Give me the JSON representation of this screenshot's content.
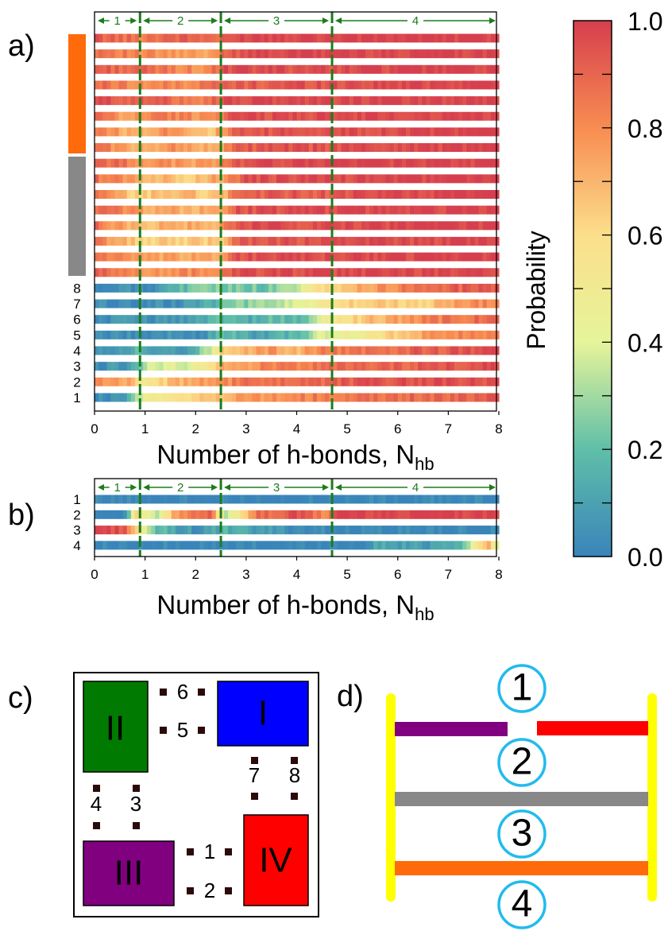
{
  "panel_labels": {
    "a": "a)",
    "b": "b)",
    "c": "c)",
    "d": "d)"
  },
  "colors": {
    "blue": "#3a84ba",
    "teal": "#5fbfa8",
    "lime": "#e6f49a",
    "yellow": "#fcdf8b",
    "orange": "#f88c51",
    "red": "#d63f4e",
    "sidebar_orange": "#ff6a0a",
    "sidebar_gray": "#888888",
    "guide_green": "#1a7d1a",
    "box_I": "#0000ff",
    "box_II": "#007a00",
    "box_III": "#800080",
    "box_IV": "#ff0000",
    "ladder_yellow": "#ffff00",
    "ladder_purple": "#800080",
    "ladder_red": "#ff0000",
    "ladder_gray": "#888888",
    "ladder_orange": "#ff6a0a",
    "circle_cyan": "#22bbee"
  },
  "chart_data": [
    {
      "id": "a",
      "type": "heatmap",
      "xlabel": "Number of h-bonds, N",
      "xlabel_sub": "hb",
      "xlim": [
        0,
        8
      ],
      "xticks": [
        "0",
        "1",
        "2",
        "3",
        "4",
        "5",
        "6",
        "7",
        "8"
      ],
      "row_labels": [
        "1",
        "2",
        "3",
        "4",
        "5",
        "6",
        "7",
        "8"
      ],
      "region_dividers": [
        0.9,
        2.5,
        4.7
      ],
      "regions": [
        "1",
        "2",
        "3",
        "4"
      ],
      "rows_top_to_bottom": [
        {
          "group": "orange",
          "profile": [
            [
              0,
              0.93
            ],
            [
              0.9,
              0.85
            ],
            [
              1.5,
              0.92
            ],
            [
              2.5,
              0.88
            ],
            [
              3,
              1.0
            ],
            [
              8,
              1.0
            ]
          ]
        },
        {
          "group": "orange",
          "profile": [
            [
              0,
              0.9
            ],
            [
              0.9,
              0.8
            ],
            [
              2.3,
              0.72
            ],
            [
              2.5,
              0.9
            ],
            [
              3,
              0.98
            ],
            [
              8,
              1.0
            ]
          ]
        },
        {
          "group": "orange",
          "profile": [
            [
              0,
              0.92
            ],
            [
              1,
              0.88
            ],
            [
              2.2,
              0.78
            ],
            [
              2.6,
              0.95
            ],
            [
              8,
              1.0
            ]
          ]
        },
        {
          "group": "orange",
          "profile": [
            [
              0,
              0.88
            ],
            [
              1,
              0.8
            ],
            [
              2,
              0.82
            ],
            [
              2.5,
              0.9
            ],
            [
              4,
              0.95
            ],
            [
              8,
              1.0
            ]
          ]
        },
        {
          "group": "orange",
          "profile": [
            [
              0,
              0.95
            ],
            [
              1,
              0.92
            ],
            [
              2.2,
              0.85
            ],
            [
              2.6,
              0.97
            ],
            [
              8,
              1.0
            ]
          ]
        },
        {
          "group": "orange",
          "profile": [
            [
              0,
              0.9
            ],
            [
              0.6,
              0.72
            ],
            [
              1.2,
              0.85
            ],
            [
              2.3,
              0.78
            ],
            [
              2.7,
              0.95
            ],
            [
              8,
              1.0
            ]
          ]
        },
        {
          "group": "orange",
          "profile": [
            [
              0,
              0.88
            ],
            [
              0.7,
              0.7
            ],
            [
              1.5,
              0.82
            ],
            [
              2.3,
              0.66
            ],
            [
              2.8,
              0.9
            ],
            [
              4,
              0.96
            ],
            [
              8,
              1.0
            ]
          ]
        },
        {
          "group": "orange",
          "profile": [
            [
              0,
              0.9
            ],
            [
              0.8,
              0.68
            ],
            [
              1.5,
              0.8
            ],
            [
              2.4,
              0.7
            ],
            [
              2.9,
              0.92
            ],
            [
              8,
              1.0
            ]
          ]
        },
        {
          "group": "gray",
          "profile": [
            [
              0,
              0.92
            ],
            [
              1,
              0.8
            ],
            [
              2,
              0.75
            ],
            [
              2.5,
              0.8
            ],
            [
              3,
              0.98
            ],
            [
              8,
              1.0
            ]
          ]
        },
        {
          "group": "gray",
          "profile": [
            [
              0,
              0.88
            ],
            [
              1,
              0.72
            ],
            [
              1.8,
              0.66
            ],
            [
              2.5,
              0.74
            ],
            [
              3,
              0.95
            ],
            [
              8,
              1.0
            ]
          ]
        },
        {
          "group": "gray",
          "profile": [
            [
              0,
              0.85
            ],
            [
              0.8,
              0.62
            ],
            [
              1.5,
              0.7
            ],
            [
              2.5,
              0.65
            ],
            [
              2.8,
              0.9
            ],
            [
              8,
              1.0
            ]
          ]
        },
        {
          "group": "gray",
          "profile": [
            [
              0,
              0.9
            ],
            [
              1,
              0.75
            ],
            [
              2.5,
              0.7
            ],
            [
              2.8,
              0.95
            ],
            [
              8,
              1.0
            ]
          ]
        },
        {
          "group": "gray",
          "profile": [
            [
              0,
              0.88
            ],
            [
              0.9,
              0.66
            ],
            [
              1.6,
              0.74
            ],
            [
              2.4,
              0.68
            ],
            [
              2.8,
              0.95
            ],
            [
              8,
              1.0
            ]
          ]
        },
        {
          "group": "gray",
          "profile": [
            [
              0,
              0.85
            ],
            [
              0.9,
              0.62
            ],
            [
              2.5,
              0.66
            ],
            [
              2.8,
              0.92
            ],
            [
              8,
              1.0
            ]
          ]
        },
        {
          "group": "gray",
          "profile": [
            [
              0,
              0.88
            ],
            [
              1,
              0.72
            ],
            [
              2.5,
              0.75
            ],
            [
              2.8,
              0.95
            ],
            [
              8,
              1.0
            ]
          ]
        },
        {
          "group": "gray",
          "profile": [
            [
              0,
              0.9
            ],
            [
              1,
              0.78
            ],
            [
              2.5,
              0.82
            ],
            [
              2.8,
              0.96
            ],
            [
              8,
              1.0
            ]
          ]
        },
        {
          "label": "8",
          "profile": [
            [
              0,
              0.02
            ],
            [
              1.3,
              0.05
            ],
            [
              1.5,
              0.18
            ],
            [
              2.5,
              0.25
            ],
            [
              3.5,
              0.22
            ],
            [
              4.1,
              0.38
            ],
            [
              4.3,
              0.55
            ],
            [
              5,
              0.7
            ],
            [
              6,
              0.82
            ],
            [
              7,
              0.9
            ],
            [
              8,
              0.95
            ]
          ]
        },
        {
          "label": "7",
          "profile": [
            [
              0,
              0.02
            ],
            [
              1.5,
              0.04
            ],
            [
              2.2,
              0.12
            ],
            [
              2.8,
              0.25
            ],
            [
              3.5,
              0.28
            ],
            [
              4.2,
              0.42
            ],
            [
              4.7,
              0.6
            ],
            [
              5.5,
              0.65
            ],
            [
              6.5,
              0.62
            ],
            [
              7,
              0.72
            ],
            [
              8,
              0.85
            ]
          ]
        },
        {
          "label": "6",
          "profile": [
            [
              0,
              0.03
            ],
            [
              1.8,
              0.08
            ],
            [
              2.4,
              0.2
            ],
            [
              3,
              0.12
            ],
            [
              3.6,
              0.2
            ],
            [
              4.1,
              0.15
            ],
            [
              4.6,
              0.5
            ],
            [
              5.5,
              0.68
            ],
            [
              6.5,
              0.82
            ],
            [
              8,
              0.9
            ]
          ]
        },
        {
          "label": "5",
          "profile": [
            [
              0,
              0.02
            ],
            [
              2.2,
              0.05
            ],
            [
              2.5,
              0.2
            ],
            [
              3.3,
              0.1
            ],
            [
              4,
              0.18
            ],
            [
              4.5,
              0.4
            ],
            [
              5.5,
              0.55
            ],
            [
              6.5,
              0.75
            ],
            [
              8,
              0.85
            ]
          ]
        },
        {
          "label": "4",
          "profile": [
            [
              0,
              0.04
            ],
            [
              0.6,
              0.06
            ],
            [
              0.8,
              0.22
            ],
            [
              1,
              0.08
            ],
            [
              1.8,
              0.06
            ],
            [
              2.2,
              0.3
            ],
            [
              2.5,
              0.62
            ],
            [
              3.5,
              0.78
            ],
            [
              4,
              0.7
            ],
            [
              4.5,
              0.82
            ],
            [
              6,
              0.9
            ],
            [
              8,
              0.95
            ]
          ]
        },
        {
          "label": "3",
          "profile": [
            [
              0,
              0.04
            ],
            [
              0.7,
              0.08
            ],
            [
              1,
              0.35
            ],
            [
              2,
              0.42
            ],
            [
              2.5,
              0.72
            ],
            [
              3.5,
              0.82
            ],
            [
              5,
              0.88
            ],
            [
              6.5,
              0.92
            ],
            [
              8,
              0.96
            ]
          ]
        },
        {
          "label": "2",
          "profile": [
            [
              0,
              0.82
            ],
            [
              0.6,
              0.75
            ],
            [
              1,
              0.55
            ],
            [
              1.6,
              0.68
            ],
            [
              2.3,
              0.75
            ],
            [
              3,
              0.85
            ],
            [
              4.5,
              0.9
            ],
            [
              6,
              0.95
            ],
            [
              8,
              0.97
            ]
          ]
        },
        {
          "label": "1",
          "profile": [
            [
              0,
              0.02
            ],
            [
              0.6,
              0.05
            ],
            [
              0.8,
              0.3
            ],
            [
              1.1,
              0.5
            ],
            [
              2,
              0.62
            ],
            [
              3,
              0.76
            ],
            [
              4.5,
              0.84
            ],
            [
              6,
              0.88
            ],
            [
              8,
              0.92
            ]
          ]
        }
      ]
    },
    {
      "id": "b",
      "type": "heatmap",
      "xlabel": "Number of h-bonds, N",
      "xlabel_sub": "hb",
      "xlim": [
        0,
        8
      ],
      "xticks": [
        "0",
        "1",
        "2",
        "3",
        "4",
        "5",
        "6",
        "7",
        "8"
      ],
      "row_labels": [
        "1",
        "2",
        "3",
        "4"
      ],
      "region_dividers": [
        0.9,
        2.5,
        4.7
      ],
      "regions": [
        "1",
        "2",
        "3",
        "4"
      ],
      "rows_top_to_bottom": [
        {
          "label": "1",
          "profile": [
            [
              0,
              0.0
            ],
            [
              8,
              0.0
            ]
          ]
        },
        {
          "label": "2",
          "profile": [
            [
              0,
              0.0
            ],
            [
              0.6,
              0.0
            ],
            [
              0.8,
              0.6
            ],
            [
              1.2,
              0.3
            ],
            [
              1.6,
              0.75
            ],
            [
              2.3,
              0.9
            ],
            [
              2.6,
              0.35
            ],
            [
              3.2,
              0.85
            ],
            [
              4,
              0.95
            ],
            [
              4.6,
              0.8
            ],
            [
              4.8,
              1.0
            ],
            [
              8,
              1.0
            ]
          ]
        },
        {
          "label": "3",
          "profile": [
            [
              0,
              1.0
            ],
            [
              0.6,
              0.95
            ],
            [
              0.9,
              0.5
            ],
            [
              1.2,
              0.2
            ],
            [
              2,
              0.05
            ],
            [
              2.6,
              0.15
            ],
            [
              3,
              0.1
            ],
            [
              4.8,
              0.0
            ],
            [
              8,
              0.0
            ]
          ]
        },
        {
          "label": "4",
          "profile": [
            [
              0,
              0.0
            ],
            [
              5.2,
              0.0
            ],
            [
              5.6,
              0.12
            ],
            [
              6.5,
              0.08
            ],
            [
              7.3,
              0.2
            ],
            [
              7.6,
              0.55
            ],
            [
              7.8,
              0.7
            ],
            [
              8,
              0.4
            ]
          ]
        }
      ]
    },
    {
      "id": "colorbar",
      "type": "colorbar",
      "label": "Probability",
      "range": [
        0,
        1
      ],
      "ticks": [
        "0.0",
        "0.2",
        "0.4",
        "0.6",
        "0.8",
        "1.0"
      ],
      "stops": [
        [
          0,
          "#3a84ba"
        ],
        [
          0.2,
          "#5fbfa8"
        ],
        [
          0.4,
          "#e6f49a"
        ],
        [
          0.6,
          "#fcdf8b"
        ],
        [
          0.8,
          "#f88c51"
        ],
        [
          1,
          "#d63f4e"
        ]
      ]
    }
  ],
  "diagram_c": {
    "boxes": {
      "I": "I",
      "II": "II",
      "III": "III",
      "IV": "IV"
    },
    "site_labels": [
      "1",
      "2",
      "3",
      "4",
      "5",
      "6",
      "7",
      "8"
    ]
  },
  "diagram_d": {
    "regions": [
      "1",
      "2",
      "3",
      "4"
    ]
  }
}
